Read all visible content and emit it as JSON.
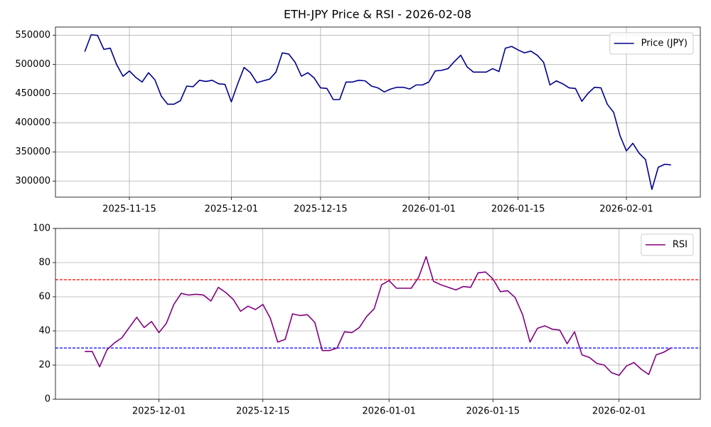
{
  "title": "ETH-JPY Price & RSI - 2026-02-08",
  "chart_data": [
    {
      "type": "line",
      "x": [
        "2025-11-08",
        "2025-11-09",
        "2025-11-10",
        "2025-11-11",
        "2025-11-12",
        "2025-11-13",
        "2025-11-14",
        "2025-11-15",
        "2025-11-16",
        "2025-11-17",
        "2025-11-18",
        "2025-11-19",
        "2025-11-20",
        "2025-11-21",
        "2025-11-22",
        "2025-11-23",
        "2025-11-24",
        "2025-11-25",
        "2025-11-26",
        "2025-11-27",
        "2025-11-28",
        "2025-11-29",
        "2025-11-30",
        "2025-12-01",
        "2025-12-02",
        "2025-12-03",
        "2025-12-04",
        "2025-12-05",
        "2025-12-06",
        "2025-12-07",
        "2025-12-08",
        "2025-12-09",
        "2025-12-10",
        "2025-12-11",
        "2025-12-12",
        "2025-12-13",
        "2025-12-14",
        "2025-12-15",
        "2025-12-16",
        "2025-12-17",
        "2025-12-18",
        "2025-12-19",
        "2025-12-20",
        "2025-12-21",
        "2025-12-22",
        "2025-12-23",
        "2025-12-24",
        "2025-12-25",
        "2025-12-26",
        "2025-12-27",
        "2025-12-28",
        "2025-12-29",
        "2025-12-30",
        "2025-12-31",
        "2026-01-01",
        "2026-01-02",
        "2026-01-03",
        "2026-01-04",
        "2026-01-05",
        "2026-01-06",
        "2026-01-07",
        "2026-01-08",
        "2026-01-09",
        "2026-01-10",
        "2026-01-11",
        "2026-01-12",
        "2026-01-13",
        "2026-01-14",
        "2026-01-15",
        "2026-01-16",
        "2026-01-17",
        "2026-01-18",
        "2026-01-19",
        "2026-01-20",
        "2026-01-21",
        "2026-01-22",
        "2026-01-23",
        "2026-01-24",
        "2026-01-25",
        "2026-01-26",
        "2026-01-27",
        "2026-01-28",
        "2026-01-29",
        "2026-01-30",
        "2026-01-31",
        "2026-02-01",
        "2026-02-02",
        "2026-02-03",
        "2026-02-04",
        "2026-02-05",
        "2026-02-06",
        "2026-02-07",
        "2026-02-08"
      ],
      "series": [
        {
          "name": "Price (JPY)",
          "color": "#00008b",
          "values": [
            522000,
            551000,
            550000,
            526000,
            528000,
            500000,
            480000,
            489000,
            478000,
            470000,
            486000,
            474000,
            446000,
            432000,
            432000,
            438000,
            463000,
            462000,
            473000,
            471000,
            473000,
            467000,
            466000,
            436000,
            467000,
            495000,
            486000,
            469000,
            472000,
            475000,
            487000,
            520000,
            518000,
            504000,
            480000,
            486000,
            477000,
            460000,
            459000,
            440000,
            440000,
            470000,
            470000,
            473000,
            472000,
            463000,
            460000,
            453000,
            458000,
            461000,
            461000,
            458000,
            465000,
            465000,
            470000,
            489000,
            490000,
            493000,
            505000,
            516000,
            496000,
            487000,
            487000,
            487000,
            493000,
            488000,
            528000,
            531000,
            525000,
            520000,
            523000,
            516000,
            504000,
            465000,
            472000,
            467000,
            460000,
            459000,
            437000,
            451000,
            461000,
            460000,
            432000,
            418000,
            378000,
            352000,
            365000,
            348000,
            337000,
            286000,
            324000,
            329000,
            328000
          ]
        }
      ],
      "xlim": [
        "2025-11-03T09:36",
        "2026-02-12T14:24"
      ],
      "xticks": [
        "2025-11-15",
        "2025-12-01",
        "2025-12-15",
        "2026-01-01",
        "2026-01-15",
        "2026-02-01"
      ],
      "ylim": [
        272750,
        564250
      ],
      "yticks": [
        300000,
        350000,
        400000,
        450000,
        500000,
        550000
      ],
      "grid": true,
      "legend": "upper right"
    },
    {
      "type": "line",
      "x": [
        "2025-11-21",
        "2025-11-22",
        "2025-11-23",
        "2025-11-24",
        "2025-11-25",
        "2025-11-26",
        "2025-11-27",
        "2025-11-28",
        "2025-11-29",
        "2025-11-30",
        "2025-12-01",
        "2025-12-02",
        "2025-12-03",
        "2025-12-04",
        "2025-12-05",
        "2025-12-06",
        "2025-12-07",
        "2025-12-08",
        "2025-12-09",
        "2025-12-10",
        "2025-12-11",
        "2025-12-12",
        "2025-12-13",
        "2025-12-14",
        "2025-12-15",
        "2025-12-16",
        "2025-12-17",
        "2025-12-18",
        "2025-12-19",
        "2025-12-20",
        "2025-12-21",
        "2025-12-22",
        "2025-12-23",
        "2025-12-24",
        "2025-12-25",
        "2025-12-26",
        "2025-12-27",
        "2025-12-28",
        "2025-12-29",
        "2025-12-30",
        "2025-12-31",
        "2026-01-01",
        "2026-01-02",
        "2026-01-03",
        "2026-01-04",
        "2026-01-05",
        "2026-01-06",
        "2026-01-07",
        "2026-01-08",
        "2026-01-09",
        "2026-01-10",
        "2026-01-11",
        "2026-01-12",
        "2026-01-13",
        "2026-01-14",
        "2026-01-15",
        "2026-01-16",
        "2026-01-17",
        "2026-01-18",
        "2026-01-19",
        "2026-01-20",
        "2026-01-21",
        "2026-01-22",
        "2026-01-23",
        "2026-01-24",
        "2026-01-25",
        "2026-01-26",
        "2026-01-27",
        "2026-01-28",
        "2026-01-29",
        "2026-01-30",
        "2026-01-31",
        "2026-02-01",
        "2026-02-02",
        "2026-02-03",
        "2026-02-04",
        "2026-02-05",
        "2026-02-06",
        "2026-02-07",
        "2026-02-08"
      ],
      "series": [
        {
          "name": "RSI",
          "color": "#800080",
          "values": [
            28,
            28,
            19,
            29,
            33,
            36,
            42,
            48,
            42,
            45.5,
            39,
            44.5,
            55.5,
            62,
            61,
            61.5,
            61,
            57.5,
            65.5,
            62.5,
            58.5,
            51.5,
            54.5,
            52.5,
            55.5,
            47.5,
            33.5,
            35,
            50,
            49,
            49.5,
            45,
            28.5,
            28.5,
            30,
            39.5,
            39,
            42,
            48.5,
            53,
            67,
            69.5,
            65,
            65,
            65,
            71.5,
            83.5,
            69,
            67,
            65.5,
            64,
            66,
            65.5,
            74,
            74.5,
            70.5,
            63,
            63.5,
            59.5,
            49.5,
            33.5,
            41.5,
            43,
            41,
            40.5,
            32.5,
            39.5,
            26,
            24.5,
            21,
            20,
            15.5,
            14,
            19.5,
            21.5,
            17.5,
            14.5,
            26,
            27.5,
            30
          ]
        }
      ],
      "hlines": [
        {
          "value": 70,
          "color": "#ff0000"
        },
        {
          "value": 30,
          "color": "#0000ff"
        }
      ],
      "xlim": [
        "2025-11-17T01:12",
        "2026-02-11T22:48"
      ],
      "xticks": [
        "2025-12-01",
        "2025-12-15",
        "2026-01-01",
        "2026-01-15",
        "2026-02-01"
      ],
      "ylim": [
        0,
        100
      ],
      "yticks": [
        0,
        20,
        40,
        60,
        80,
        100
      ],
      "grid": true,
      "legend": "upper right"
    }
  ]
}
